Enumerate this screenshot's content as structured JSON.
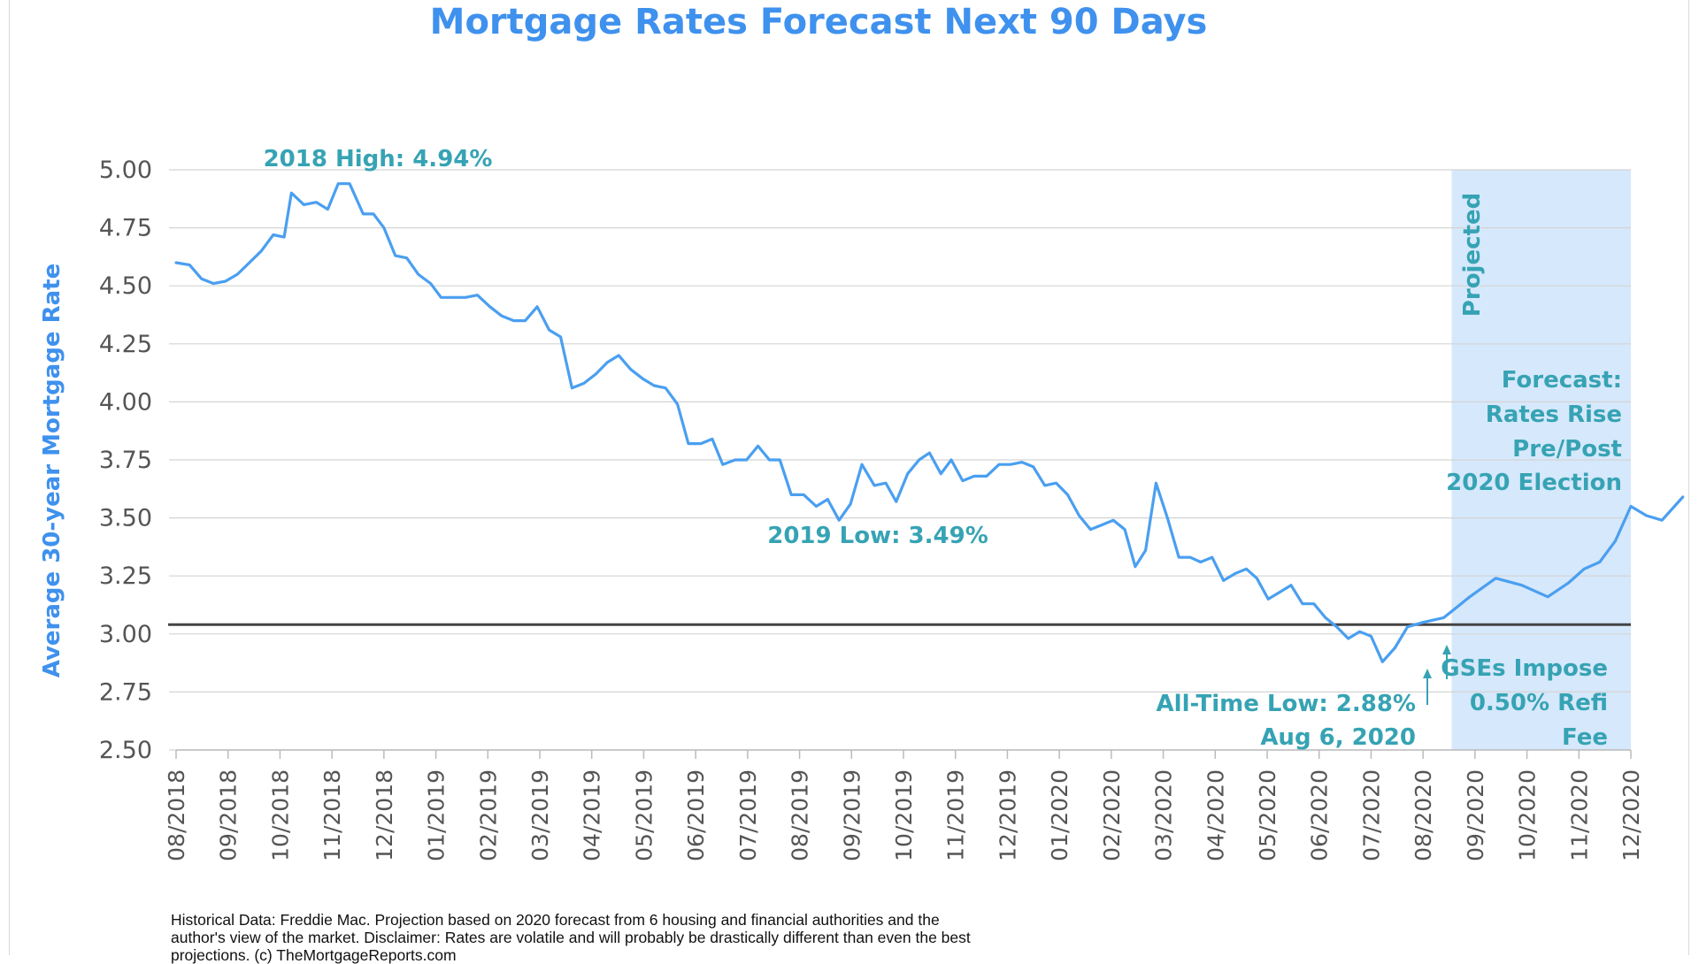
{
  "chart_data": {
    "type": "line",
    "title": "Mortgage Rates Forecast Next 90 Days",
    "ylabel": "Average 30-year Mortgage Rate",
    "xlabel": "",
    "ylim": [
      2.5,
      5.0
    ],
    "yticks": [
      "5.00",
      "4.75",
      "4.50",
      "4.25",
      "4.00",
      "3.75",
      "3.50",
      "3.25",
      "3.00",
      "2.75",
      "2.50"
    ],
    "categories": [
      "08/2018",
      "09/2018",
      "10/2018",
      "11/2018",
      "12/2018",
      "01/2019",
      "02/2019",
      "03/2019",
      "04/2019",
      "05/2019",
      "06/2019",
      "07/2019",
      "08/2019",
      "09/2019",
      "10/2019",
      "11/2019",
      "12/2019",
      "01/2020",
      "02/2020",
      "03/2020",
      "04/2020",
      "05/2020",
      "06/2020",
      "07/2020",
      "08/2020",
      "09/2020",
      "10/2020",
      "11/2020",
      "12/2020"
    ],
    "grid": true,
    "reference_line": 3.04,
    "projected_region_start_index": 24.55,
    "projected_label": "Projected",
    "colors": {
      "line": "#4a9ff0",
      "title": "#3f91ee",
      "annotation": "#36a3b4",
      "projected_fill": "#d6e8fb",
      "reference": "#444444",
      "grid": "#d4d4d4"
    },
    "series": [
      {
        "values": [
          [
            0.0,
            4.6
          ],
          [
            0.26,
            4.59
          ],
          [
            0.49,
            4.53
          ],
          [
            0.72,
            4.51
          ],
          [
            0.95,
            4.52
          ],
          [
            1.18,
            4.55
          ],
          [
            1.41,
            4.6
          ],
          [
            1.64,
            4.65
          ],
          [
            1.87,
            4.72
          ],
          [
            2.08,
            4.71
          ],
          [
            2.22,
            4.9
          ],
          [
            2.46,
            4.85
          ],
          [
            2.7,
            4.86
          ],
          [
            2.92,
            4.83
          ],
          [
            3.12,
            4.94
          ],
          [
            3.34,
            4.94
          ],
          [
            3.6,
            4.81
          ],
          [
            3.8,
            4.81
          ],
          [
            4.0,
            4.75
          ],
          [
            4.22,
            4.63
          ],
          [
            4.44,
            4.62
          ],
          [
            4.66,
            4.55
          ],
          [
            4.9,
            4.51
          ],
          [
            5.1,
            4.45
          ],
          [
            5.34,
            4.45
          ],
          [
            5.57,
            4.45
          ],
          [
            5.8,
            4.46
          ],
          [
            6.04,
            4.41
          ],
          [
            6.27,
            4.37
          ],
          [
            6.5,
            4.35
          ],
          [
            6.72,
            4.35
          ],
          [
            6.95,
            4.41
          ],
          [
            7.18,
            4.31
          ],
          [
            7.4,
            4.28
          ],
          [
            7.62,
            4.06
          ],
          [
            7.85,
            4.08
          ],
          [
            8.08,
            4.12
          ],
          [
            8.3,
            4.17
          ],
          [
            8.52,
            4.2
          ],
          [
            8.75,
            4.14
          ],
          [
            8.98,
            4.1
          ],
          [
            9.2,
            4.07
          ],
          [
            9.42,
            4.06
          ],
          [
            9.65,
            3.99
          ],
          [
            9.86,
            3.82
          ],
          [
            10.1,
            3.82
          ],
          [
            10.32,
            3.84
          ],
          [
            10.52,
            3.73
          ],
          [
            10.76,
            3.75
          ],
          [
            10.98,
            3.75
          ],
          [
            11.2,
            3.81
          ],
          [
            11.42,
            3.75
          ],
          [
            11.62,
            3.75
          ],
          [
            11.84,
            3.6
          ],
          [
            12.08,
            3.6
          ],
          [
            12.32,
            3.55
          ],
          [
            12.54,
            3.58
          ],
          [
            12.76,
            3.49
          ],
          [
            12.98,
            3.56
          ],
          [
            13.2,
            3.73
          ],
          [
            13.44,
            3.64
          ],
          [
            13.66,
            3.65
          ],
          [
            13.86,
            3.57
          ],
          [
            14.08,
            3.69
          ],
          [
            14.3,
            3.75
          ],
          [
            14.5,
            3.78
          ],
          [
            14.72,
            3.69
          ],
          [
            14.92,
            3.75
          ],
          [
            15.14,
            3.66
          ],
          [
            15.36,
            3.68
          ],
          [
            15.6,
            3.68
          ],
          [
            15.84,
            3.73
          ],
          [
            16.06,
            3.73
          ],
          [
            16.28,
            3.74
          ],
          [
            16.5,
            3.72
          ],
          [
            16.72,
            3.64
          ],
          [
            16.94,
            3.65
          ],
          [
            17.16,
            3.6
          ],
          [
            17.38,
            3.51
          ],
          [
            17.6,
            3.45
          ],
          [
            17.82,
            3.47
          ],
          [
            18.04,
            3.49
          ],
          [
            18.26,
            3.45
          ],
          [
            18.46,
            3.29
          ],
          [
            18.66,
            3.36
          ],
          [
            18.86,
            3.65
          ],
          [
            19.08,
            3.5
          ],
          [
            19.3,
            3.33
          ],
          [
            19.52,
            3.33
          ],
          [
            19.72,
            3.31
          ],
          [
            19.94,
            3.33
          ],
          [
            20.16,
            3.23
          ],
          [
            20.38,
            3.26
          ],
          [
            20.6,
            3.28
          ],
          [
            20.8,
            3.24
          ],
          [
            21.02,
            3.15
          ],
          [
            21.24,
            3.18
          ],
          [
            21.46,
            3.21
          ],
          [
            21.68,
            3.13
          ],
          [
            21.9,
            3.13
          ],
          [
            22.12,
            3.07
          ],
          [
            22.34,
            3.03
          ],
          [
            22.56,
            2.98
          ],
          [
            22.78,
            3.01
          ],
          [
            23.0,
            2.99
          ],
          [
            23.22,
            2.88
          ],
          [
            23.46,
            2.94
          ]
        ]
      },
      {
        "values": [
          [
            23.46,
            2.94
          ],
          [
            23.7,
            3.03
          ],
          [
            24.0,
            3.05
          ],
          [
            24.4,
            3.07
          ],
          [
            24.9,
            3.16
          ],
          [
            25.4,
            3.24
          ],
          [
            25.9,
            3.21
          ],
          [
            26.4,
            3.16
          ],
          [
            26.8,
            3.22
          ],
          [
            27.1,
            3.28
          ],
          [
            27.4,
            3.31
          ],
          [
            27.7,
            3.4
          ],
          [
            28.0,
            3.55
          ],
          [
            28.3,
            3.51
          ],
          [
            28.6,
            3.49
          ],
          [
            29.0,
            3.59
          ]
        ]
      }
    ],
    "annotations": {
      "high_2018": "2018 High: 4.94%",
      "low_2019": "2019 Low: 3.49%",
      "alltime_low_line1": "All-Time Low: 2.88%",
      "alltime_low_line2": "Aug 6, 2020",
      "gse_line1": "GSEs Impose",
      "gse_line2": "0.50% Refi",
      "gse_line3": "Fee",
      "forecast_line1": "Forecast:",
      "forecast_line2": "Rates Rise",
      "forecast_line3": "Pre/Post",
      "forecast_line4": "2020 Election"
    }
  },
  "footnote": {
    "line1": "Historical Data: Freddie Mac.  Projection based on 2020 forecast from 6 housing and financial authorities and the",
    "line2": "author's view of the market. Disclaimer: Rates are volatile and will probably be drastically different than even the best",
    "line3": "projections. (c) TheMortgageReports.com"
  }
}
